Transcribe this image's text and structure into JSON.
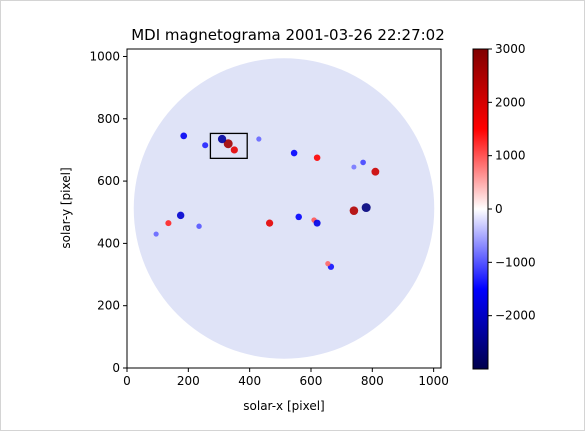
{
  "chart_data": {
    "type": "heatmap",
    "title": "MDI magnetograma 2001-03-26 22:27:02",
    "xlabel": "solar-x [pixel]",
    "ylabel": "solar-y [pixel]",
    "xlim": [
      0,
      1024
    ],
    "ylim": [
      0,
      1024
    ],
    "x_ticks": [
      0,
      200,
      400,
      600,
      800,
      1000
    ],
    "y_ticks": [
      0,
      200,
      400,
      600,
      800,
      1000
    ],
    "grid": false,
    "colormap": "seismic",
    "colorbar": {
      "vmin": -3000,
      "vmax": 3000,
      "ticks": [
        3000,
        2000,
        1000,
        0,
        -1000,
        -2000
      ],
      "tick_labels": [
        "3000",
        "2000",
        "1000",
        "0",
        "−1000",
        "−2000"
      ]
    },
    "disk": {
      "center": [
        512,
        512
      ],
      "radius": 490
    },
    "highlight_box": {
      "x": [
        272,
        392
      ],
      "y": [
        673,
        753
      ]
    },
    "active_regions": [
      {
        "x": 330,
        "y": 720,
        "value": 2600
      },
      {
        "x": 310,
        "y": 735,
        "value": -2300
      },
      {
        "x": 350,
        "y": 700,
        "value": 1800
      },
      {
        "x": 185,
        "y": 745,
        "value": -1600
      },
      {
        "x": 255,
        "y": 715,
        "value": -1300
      },
      {
        "x": 430,
        "y": 735,
        "value": -900
      },
      {
        "x": 545,
        "y": 690,
        "value": -1500
      },
      {
        "x": 620,
        "y": 675,
        "value": 1500
      },
      {
        "x": 810,
        "y": 630,
        "value": 2100
      },
      {
        "x": 770,
        "y": 660,
        "value": -1100
      },
      {
        "x": 740,
        "y": 645,
        "value": -800
      },
      {
        "x": 175,
        "y": 490,
        "value": -1900
      },
      {
        "x": 135,
        "y": 465,
        "value": 1300
      },
      {
        "x": 235,
        "y": 455,
        "value": -1000
      },
      {
        "x": 465,
        "y": 465,
        "value": 1800
      },
      {
        "x": 560,
        "y": 485,
        "value": -1500
      },
      {
        "x": 610,
        "y": 475,
        "value": 1000
      },
      {
        "x": 620,
        "y": 465,
        "value": -1700
      },
      {
        "x": 780,
        "y": 515,
        "value": -2600
      },
      {
        "x": 740,
        "y": 505,
        "value": 2400
      },
      {
        "x": 665,
        "y": 325,
        "value": -1400
      },
      {
        "x": 655,
        "y": 335,
        "value": 900
      },
      {
        "x": 95,
        "y": 430,
        "value": -900
      }
    ]
  }
}
